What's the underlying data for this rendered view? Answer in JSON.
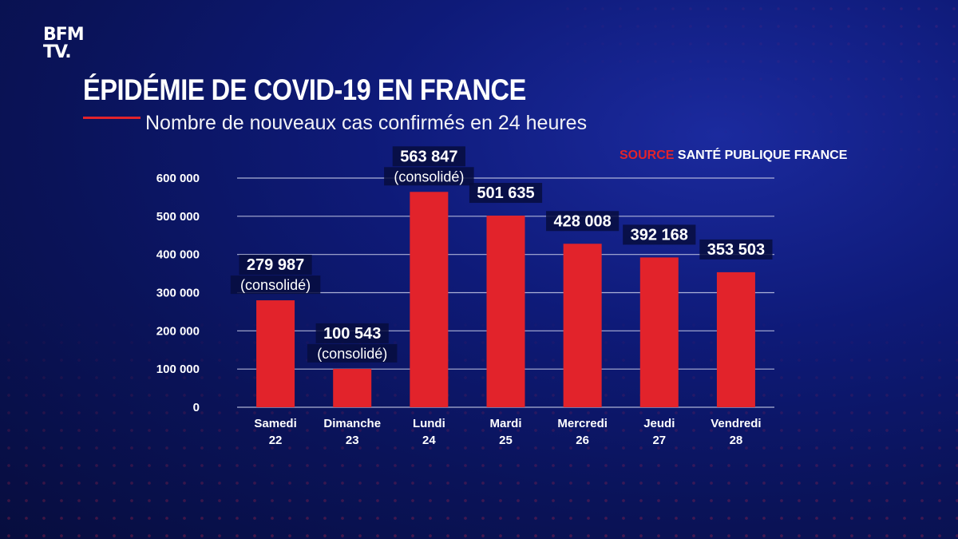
{
  "brand": {
    "line1": "BFM",
    "line2": "TV."
  },
  "header": {
    "title": "ÉPIDÉMIE DE COVID-19 EN FRANCE",
    "subtitle": "Nombre de nouveaux cas confirmés en 24 heures"
  },
  "source": {
    "key": "SOURCE",
    "value": "SANTÉ PUBLIQUE FRANCE"
  },
  "colors": {
    "bar": "#e2232b",
    "accent": "#e2232b",
    "gridline": "#c9cde8"
  },
  "chart_data": {
    "type": "bar",
    "title": "ÉPIDÉMIE DE COVID-19 EN FRANCE",
    "subtitle": "Nombre de nouveaux cas confirmés en 24 heures",
    "categories": [
      {
        "day": "Samedi",
        "date": "22"
      },
      {
        "day": "Dimanche",
        "date": "23"
      },
      {
        "day": "Lundi",
        "date": "24"
      },
      {
        "day": "Mardi",
        "date": "25"
      },
      {
        "day": "Mercredi",
        "date": "26"
      },
      {
        "day": "Jeudi",
        "date": "27"
      },
      {
        "day": "Vendredi",
        "date": "28"
      }
    ],
    "values": [
      279987,
      100543,
      563847,
      501635,
      428008,
      392168,
      353503
    ],
    "value_labels": [
      "279 987",
      "100 543",
      "563 847",
      "501 635",
      "428 008",
      "392 168",
      "353 503"
    ],
    "notes": [
      "(consolidé)",
      "(consolidé)",
      "(consolidé)",
      "",
      "",
      "",
      ""
    ],
    "yticks": [
      {
        "value": 0,
        "label": "0"
      },
      {
        "value": 100000,
        "label": "100 000"
      },
      {
        "value": 200000,
        "label": "200 000"
      },
      {
        "value": 300000,
        "label": "300 000"
      },
      {
        "value": 400000,
        "label": "400 000"
      },
      {
        "value": 500000,
        "label": "500 000"
      },
      {
        "value": 600000,
        "label": "600 000"
      }
    ],
    "ylim": [
      0,
      600000
    ],
    "grid": true,
    "xlabel": "",
    "ylabel": ""
  }
}
